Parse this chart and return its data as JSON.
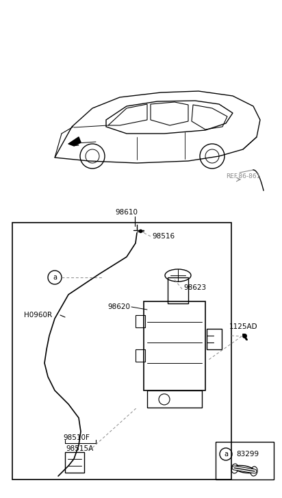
{
  "bg_color": "#ffffff",
  "line_color": "#000000",
  "gray_color": "#888888",
  "light_gray": "#aaaaaa",
  "figure_size": [
    4.12,
    7.27
  ],
  "dpi": 100,
  "labels": {
    "ref": "REF.86-861",
    "98610": "98610",
    "98516": "98516",
    "98623": "98623",
    "98620": "98620",
    "1125AD": "1125AD",
    "H0960R": "H0960R",
    "98510F": "98510F",
    "98515A": "98515A",
    "83299": "83299"
  }
}
